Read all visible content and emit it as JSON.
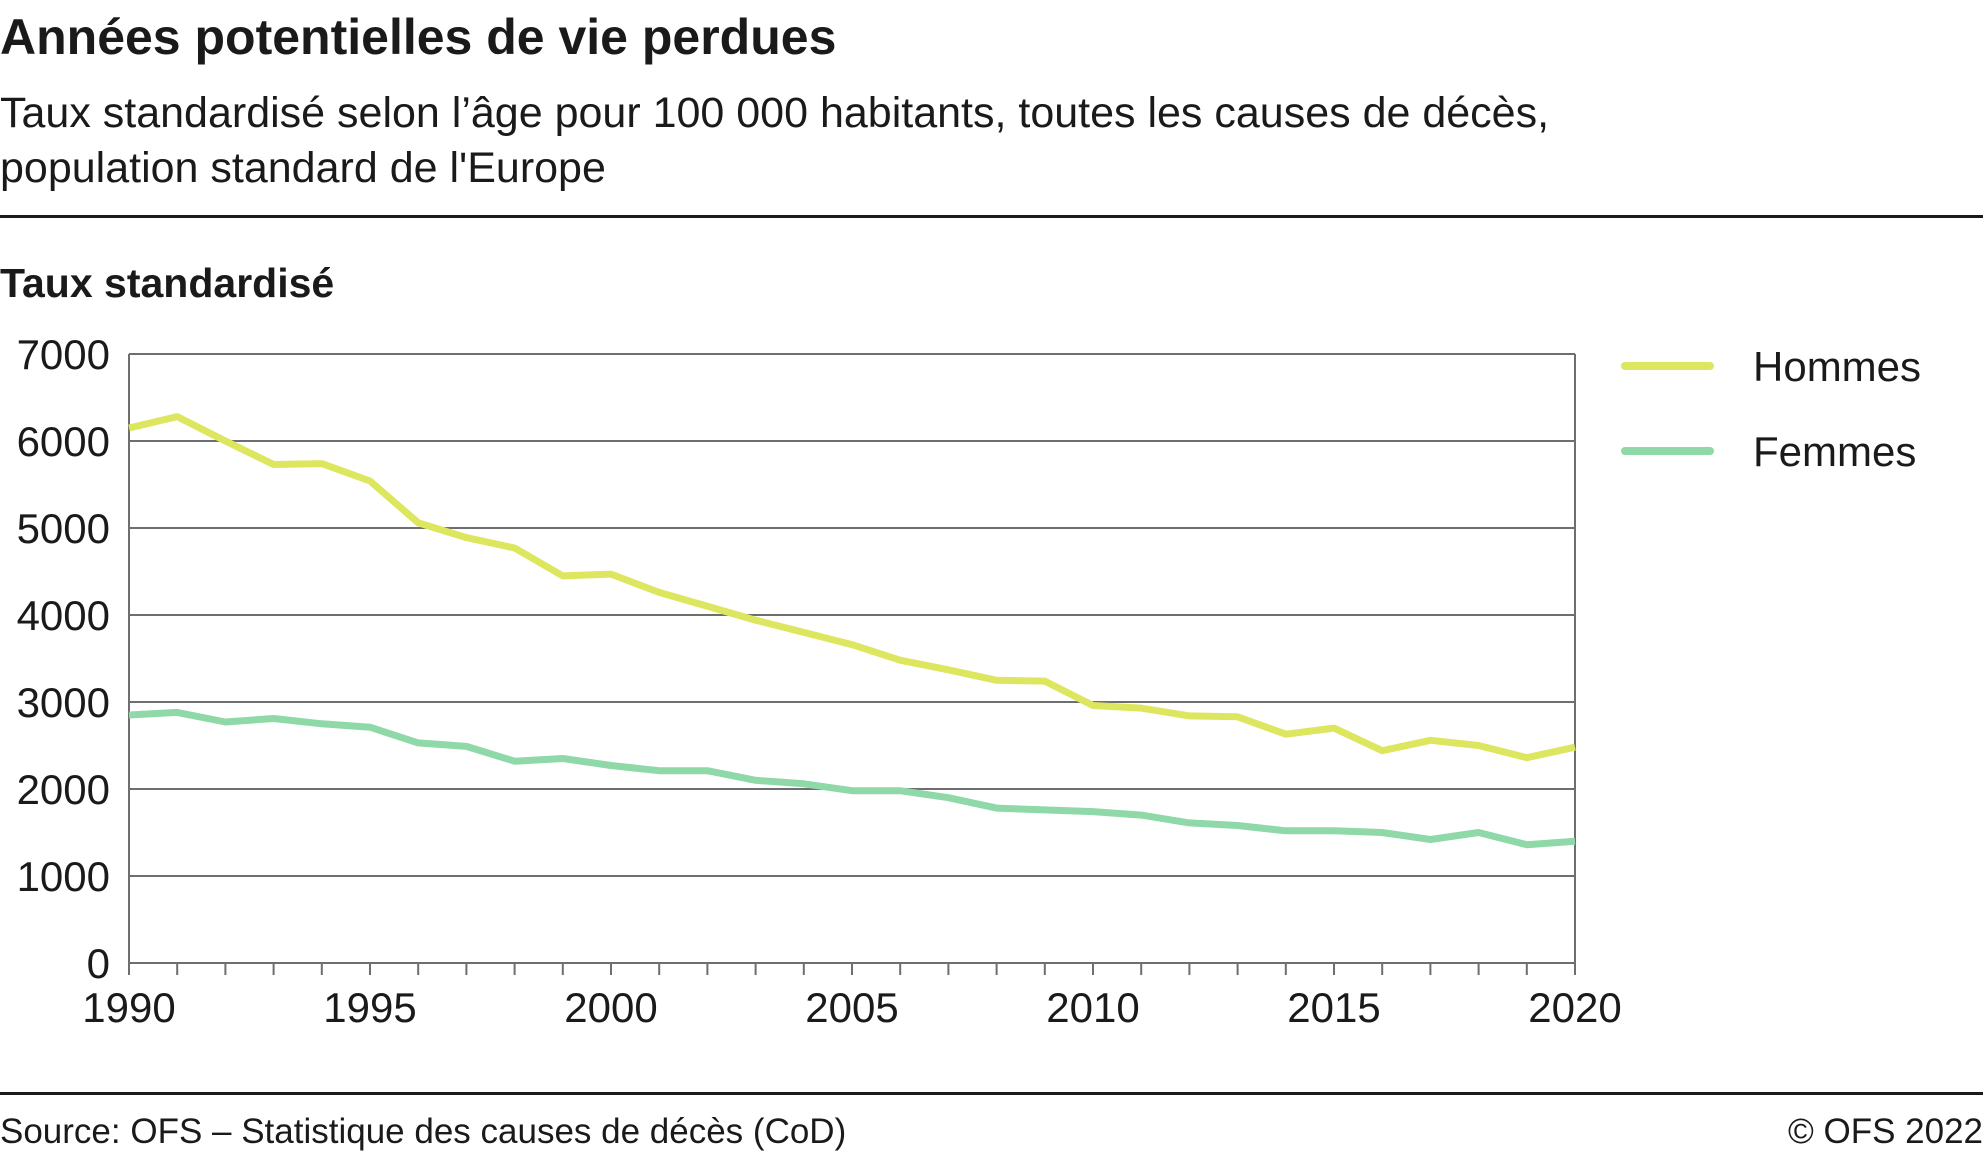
{
  "header": {
    "title": "Années potentielles de vie perdues",
    "subtitle_line1": "Taux standardisé selon l’âge pour 100 000 habitants, toutes les causes de décès,",
    "subtitle_line2": "population standard de l'Europe"
  },
  "footer": {
    "source": "Source: OFS – Statistique des causes de décès (CoD)",
    "copyright": "© OFS 2022"
  },
  "chart_data": {
    "type": "line",
    "title": "Années potentielles de vie perdues",
    "subtitle": "Taux standardisé selon l’âge pour 100 000 habitants, toutes les causes de décès, population standard de l'Europe",
    "ylabel": "Taux standardisé",
    "xlabel": "",
    "xlim": [
      1990,
      2020
    ],
    "ylim": [
      0,
      7000
    ],
    "x_ticks": [
      1990,
      1995,
      2000,
      2005,
      2010,
      2015,
      2020
    ],
    "y_ticks": [
      0,
      1000,
      2000,
      3000,
      4000,
      5000,
      6000,
      7000
    ],
    "grid": true,
    "legend_position": "right",
    "x": [
      1990,
      1991,
      1992,
      1993,
      1994,
      1995,
      1996,
      1997,
      1998,
      1999,
      2000,
      2001,
      2002,
      2003,
      2004,
      2005,
      2006,
      2007,
      2008,
      2009,
      2010,
      2011,
      2012,
      2013,
      2014,
      2015,
      2016,
      2017,
      2018,
      2019,
      2020
    ],
    "series": [
      {
        "name": "Hommes",
        "color": "#dde65f",
        "values": [
          6150,
          6280,
          6000,
          5730,
          5740,
          5540,
          5060,
          4890,
          4770,
          4450,
          4470,
          4260,
          4100,
          3940,
          3800,
          3660,
          3480,
          3370,
          3250,
          3240,
          2960,
          2930,
          2840,
          2830,
          2630,
          2700,
          2440,
          2560,
          2500,
          2360,
          2480
        ]
      },
      {
        "name": "Femmes",
        "color": "#8fd8a8",
        "values": [
          2850,
          2880,
          2770,
          2810,
          2750,
          2710,
          2530,
          2490,
          2320,
          2350,
          2270,
          2210,
          2210,
          2100,
          2060,
          1980,
          1980,
          1900,
          1780,
          1760,
          1740,
          1700,
          1610,
          1580,
          1520,
          1520,
          1500,
          1420,
          1500,
          1360,
          1400
        ]
      }
    ]
  }
}
